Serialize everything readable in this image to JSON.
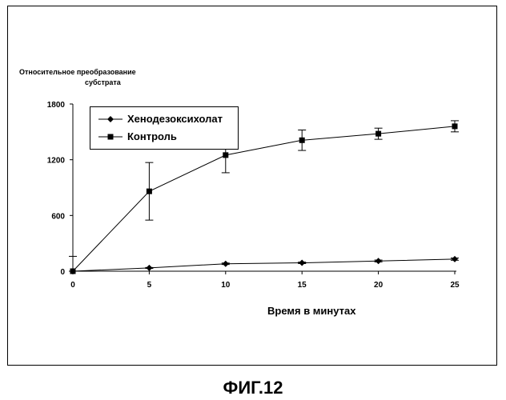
{
  "chart_data": {
    "type": "line",
    "title": "",
    "ylabel_lines": [
      "Относительное преобразование",
      "субстрата"
    ],
    "xlabel": "Время в минутах",
    "x": [
      0,
      5,
      10,
      15,
      20,
      25
    ],
    "xlim": [
      0,
      25
    ],
    "ylim": [
      0,
      1800
    ],
    "xticks": [
      "0",
      "5",
      "10",
      "15",
      "20",
      "25"
    ],
    "yticks": [
      "0",
      "600",
      "1200",
      "1800"
    ],
    "grid": false,
    "legend_position": "top-left",
    "series": [
      {
        "name": "Хенодезоксихолат",
        "marker": "diamond",
        "values": [
          0,
          35,
          80,
          90,
          110,
          130
        ],
        "error": [
          0,
          5,
          8,
          8,
          10,
          12
        ]
      },
      {
        "name": "Контроль",
        "marker": "square",
        "values": [
          0,
          860,
          1250,
          1410,
          1480,
          1560
        ],
        "error": [
          160,
          310,
          190,
          110,
          60,
          60
        ]
      }
    ]
  },
  "caption": "ФИГ.12"
}
